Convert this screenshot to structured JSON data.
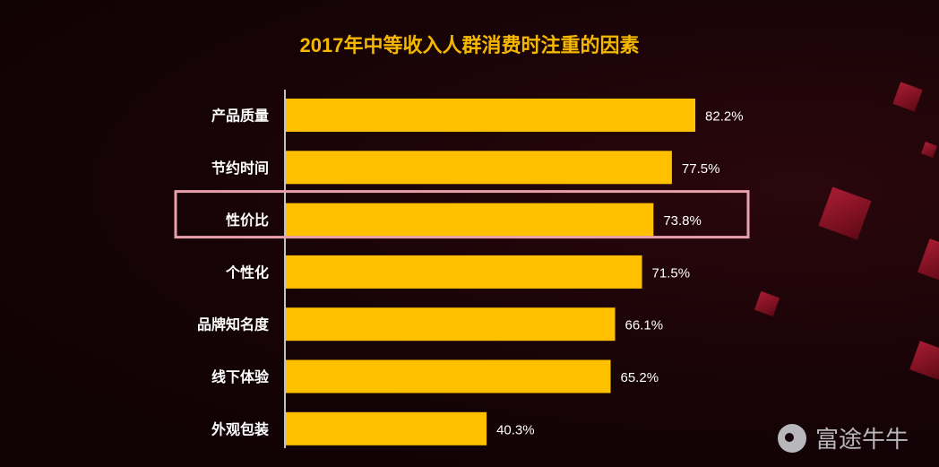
{
  "chart_data": {
    "type": "bar",
    "orientation": "horizontal",
    "title": "2017年中等收入人群消费时注重的因素",
    "categories": [
      "产品质量",
      "节约时间",
      "性价比",
      "个性化",
      "品牌知名度",
      "线下体验",
      "外观包装"
    ],
    "values": [
      82.2,
      77.5,
      73.8,
      71.5,
      66.1,
      65.2,
      40.3
    ],
    "value_labels": [
      "82.2%",
      "77.5%",
      "73.8%",
      "71.5%",
      "66.1%",
      "65.2%",
      "40.3%"
    ],
    "unit": "%",
    "highlighted_category": "性价比",
    "xlim": [
      0,
      100
    ],
    "grid": false,
    "colors": {
      "bar": "#ffc000",
      "highlight_box": "#e8a0aa",
      "title": "#f5b800",
      "text": "#ffffff"
    }
  },
  "watermark": {
    "text": "富途牛牛"
  }
}
